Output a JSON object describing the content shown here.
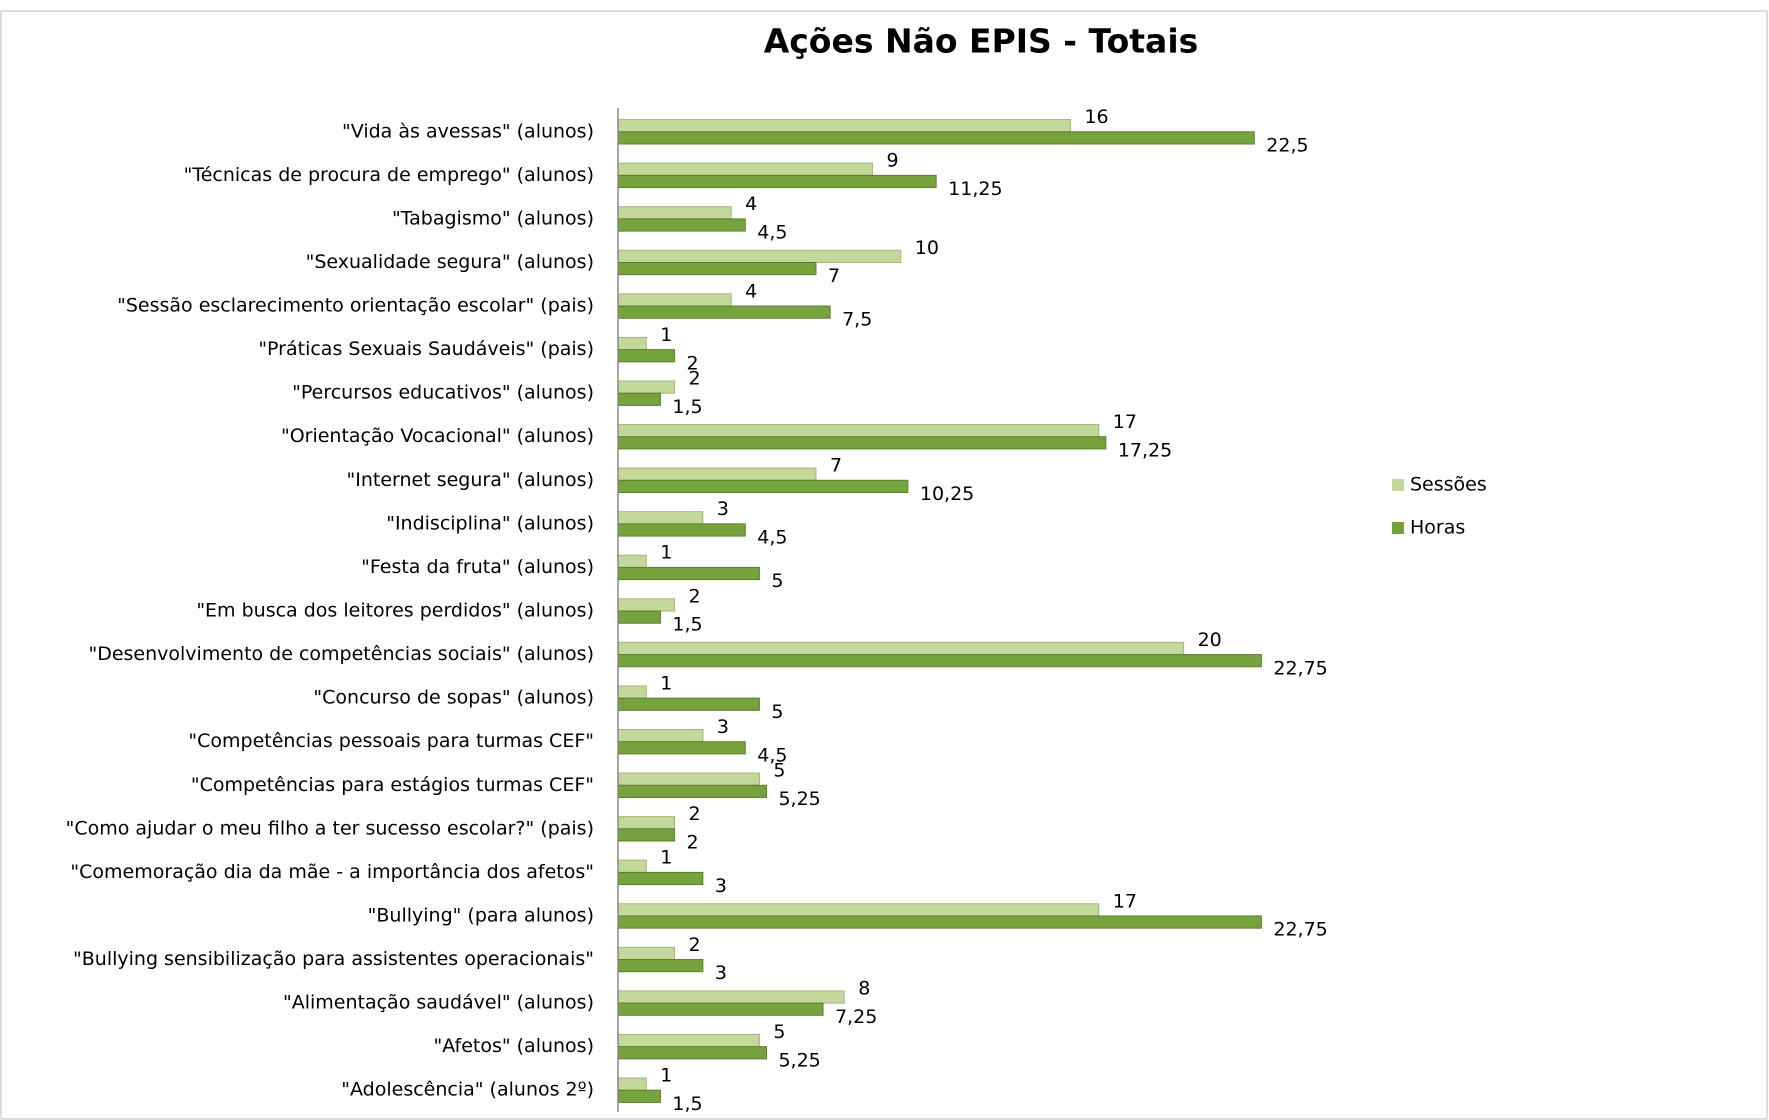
{
  "chart_data": {
    "type": "bar",
    "orientation": "horizontal",
    "title": "Ações Não EPIS  -  Totais",
    "categories": [
      "\"Vida às avessas\" (alunos)",
      "\"Técnicas de procura de emprego\" (alunos)",
      "\"Tabagismo\" (alunos)",
      "\"Sexualidade segura\" (alunos)",
      "\"Sessão esclarecimento orientação escolar\" (pais)",
      "\"Práticas Sexuais Saudáveis\" (pais)",
      "\"Percursos educativos\" (alunos)",
      "\"Orientação Vocacional\" (alunos)",
      "\"Internet segura\" (alunos)",
      "\"Indisciplina\" (alunos)",
      "\"Festa da fruta\" (alunos)",
      "\"Em busca dos leitores perdidos\" (alunos)",
      "\"Desenvolvimento de competências sociais\" (alunos)",
      "\"Concurso de sopas\" (alunos)",
      "\"Competências pessoais para turmas CEF\"",
      "\"Competências para estágios turmas CEF\"",
      "\"Como ajudar o meu filho a ter sucesso escolar?\" (pais)",
      "\"Comemoração dia da mãe - a importância dos afetos\"",
      "\"Bullying\" (para alunos)",
      "\"Bullying sensibilização para assistentes operacionais\"",
      "\"Alimentação saudável\" (alunos)",
      "\"Afetos\" (alunos)",
      "\"Adolescência\" (alunos 2º)"
    ],
    "series": [
      {
        "name": "Sessões",
        "color": "#c4d89b",
        "values": [
          16,
          9,
          4,
          10,
          4,
          1,
          2,
          17,
          7,
          3,
          1,
          2,
          20,
          1,
          3,
          5,
          2,
          1,
          17,
          2,
          8,
          5,
          1
        ]
      },
      {
        "name": "Horas",
        "color": "#77a33e",
        "values": [
          22.5,
          11.25,
          4.5,
          7,
          7.5,
          2,
          1.5,
          17.25,
          10.25,
          4.5,
          5,
          1.5,
          22.75,
          5,
          4.5,
          5.25,
          2,
          3,
          22.75,
          3,
          7.25,
          5.25,
          1.5
        ],
        "value_labels": [
          "22,5",
          "11,25",
          "4,5",
          "7",
          "7,5",
          "2",
          "1,5",
          "17,25",
          "10,25",
          "4,5",
          "5",
          "1,5",
          "22,75",
          "5",
          "4,5",
          "5,25",
          "2",
          "3",
          "22,75",
          "3",
          "7,25",
          "5,25",
          "1,5"
        ]
      }
    ],
    "xlim": [
      0,
      25
    ],
    "legend": "right"
  }
}
